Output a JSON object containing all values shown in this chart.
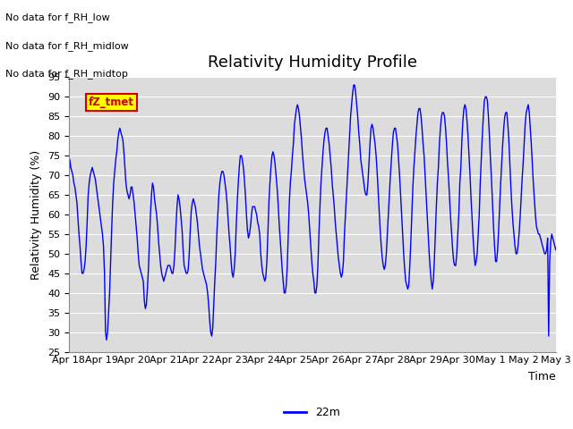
{
  "title": "Relativity Humidity Profile",
  "xlabel": "Time",
  "ylabel": "Relativity Humidity (%)",
  "ylim": [
    25,
    95
  ],
  "yticks": [
    25,
    30,
    35,
    40,
    45,
    50,
    55,
    60,
    65,
    70,
    75,
    80,
    85,
    90,
    95
  ],
  "line_color": "#0000FF",
  "line_label": "22m",
  "no_data_lines": [
    "No data for f_RH_low",
    "No data for f_RH_midlow",
    "No data for f_RH_midtop"
  ],
  "fz_tmet_label": "fZ_tmet",
  "fz_tmet_color": "#CC0000",
  "fz_tmet_bg": "#FFFF00",
  "bg_color": "#DCDCDC",
  "xtick_labels": [
    "Apr 18",
    "Apr 19",
    "Apr 20",
    "Apr 21",
    "Apr 22",
    "Apr 23",
    "Apr 24",
    "Apr 25",
    "Apr 26",
    "Apr 27",
    "Apr 28",
    "Apr 29",
    "Apr 30",
    "May 1",
    "May 2",
    "May 3"
  ],
  "humidity_values": [
    69,
    74,
    72,
    71,
    70,
    68,
    67,
    65,
    63,
    59,
    55,
    52,
    48,
    45,
    45,
    46,
    48,
    52,
    58,
    65,
    68,
    70,
    71,
    72,
    71,
    70,
    69,
    67,
    65,
    63,
    61,
    59,
    57,
    55,
    52,
    45,
    30,
    28,
    30,
    35,
    40,
    48,
    56,
    63,
    68,
    71,
    74,
    76,
    79,
    81,
    82,
    81,
    80,
    79,
    76,
    72,
    68,
    66,
    65,
    64,
    65,
    67,
    67,
    65,
    63,
    60,
    57,
    54,
    50,
    47,
    46,
    45,
    44,
    43,
    38,
    36,
    37,
    41,
    46,
    53,
    60,
    65,
    68,
    67,
    64,
    62,
    60,
    57,
    53,
    50,
    47,
    45,
    44,
    43,
    44,
    45,
    46,
    47,
    47,
    47,
    46,
    45,
    45,
    47,
    51,
    57,
    62,
    65,
    64,
    62,
    59,
    56,
    51,
    47,
    46,
    45,
    45,
    46,
    50,
    56,
    61,
    63,
    64,
    63,
    62,
    60,
    58,
    55,
    52,
    50,
    48,
    46,
    45,
    44,
    43,
    42,
    40,
    37,
    33,
    30,
    29,
    31,
    37,
    43,
    48,
    55,
    60,
    65,
    68,
    70,
    71,
    71,
    70,
    68,
    66,
    63,
    59,
    55,
    52,
    48,
    45,
    44,
    46,
    50,
    57,
    63,
    68,
    72,
    75,
    75,
    74,
    72,
    69,
    65,
    60,
    56,
    54,
    55,
    57,
    60,
    62,
    62,
    62,
    61,
    60,
    58,
    57,
    55,
    50,
    47,
    45,
    44,
    43,
    44,
    48,
    55,
    63,
    68,
    72,
    75,
    76,
    75,
    73,
    70,
    67,
    63,
    58,
    54,
    50,
    46,
    43,
    40,
    40,
    42,
    47,
    55,
    63,
    68,
    71,
    75,
    78,
    83,
    85,
    87,
    88,
    87,
    85,
    82,
    79,
    75,
    72,
    69,
    67,
    65,
    63,
    60,
    56,
    52,
    48,
    45,
    43,
    40,
    40,
    42,
    47,
    55,
    62,
    68,
    72,
    76,
    79,
    81,
    82,
    82,
    80,
    78,
    75,
    72,
    68,
    65,
    62,
    58,
    55,
    52,
    49,
    47,
    45,
    44,
    45,
    48,
    55,
    60,
    65,
    70,
    75,
    80,
    85,
    88,
    91,
    93,
    93,
    91,
    88,
    85,
    81,
    78,
    74,
    72,
    70,
    68,
    66,
    65,
    65,
    68,
    73,
    78,
    82,
    83,
    82,
    80,
    78,
    75,
    71,
    66,
    61,
    56,
    52,
    49,
    47,
    46,
    47,
    50,
    55,
    60,
    65,
    70,
    74,
    78,
    81,
    82,
    82,
    80,
    78,
    74,
    70,
    65,
    60,
    55,
    50,
    46,
    43,
    42,
    41,
    42,
    47,
    53,
    60,
    67,
    72,
    76,
    80,
    83,
    86,
    87,
    87,
    85,
    82,
    78,
    75,
    70,
    65,
    60,
    55,
    50,
    46,
    43,
    41,
    43,
    48,
    55,
    62,
    68,
    72,
    78,
    82,
    85,
    86,
    86,
    85,
    82,
    78,
    73,
    69,
    64,
    59,
    55,
    51,
    48,
    47,
    47,
    50,
    55,
    60,
    68,
    72,
    79,
    84,
    87,
    88,
    87,
    84,
    80,
    75,
    70,
    64,
    59,
    54,
    50,
    47,
    48,
    50,
    55,
    60,
    68,
    74,
    80,
    85,
    89,
    90,
    90,
    89,
    85,
    80,
    74,
    69,
    63,
    57,
    52,
    48,
    48,
    51,
    56,
    62,
    68,
    73,
    78,
    82,
    85,
    86,
    86,
    83,
    79,
    73,
    67,
    62,
    58,
    55,
    52,
    50,
    50,
    52,
    55,
    59,
    64,
    69,
    73,
    78,
    83,
    86,
    87,
    88,
    86,
    82,
    78,
    73,
    68,
    64,
    60,
    57,
    56,
    55,
    55,
    54,
    53,
    52,
    51,
    50,
    50,
    51,
    54,
    29,
    48,
    53,
    55,
    54,
    53,
    52,
    51
  ]
}
